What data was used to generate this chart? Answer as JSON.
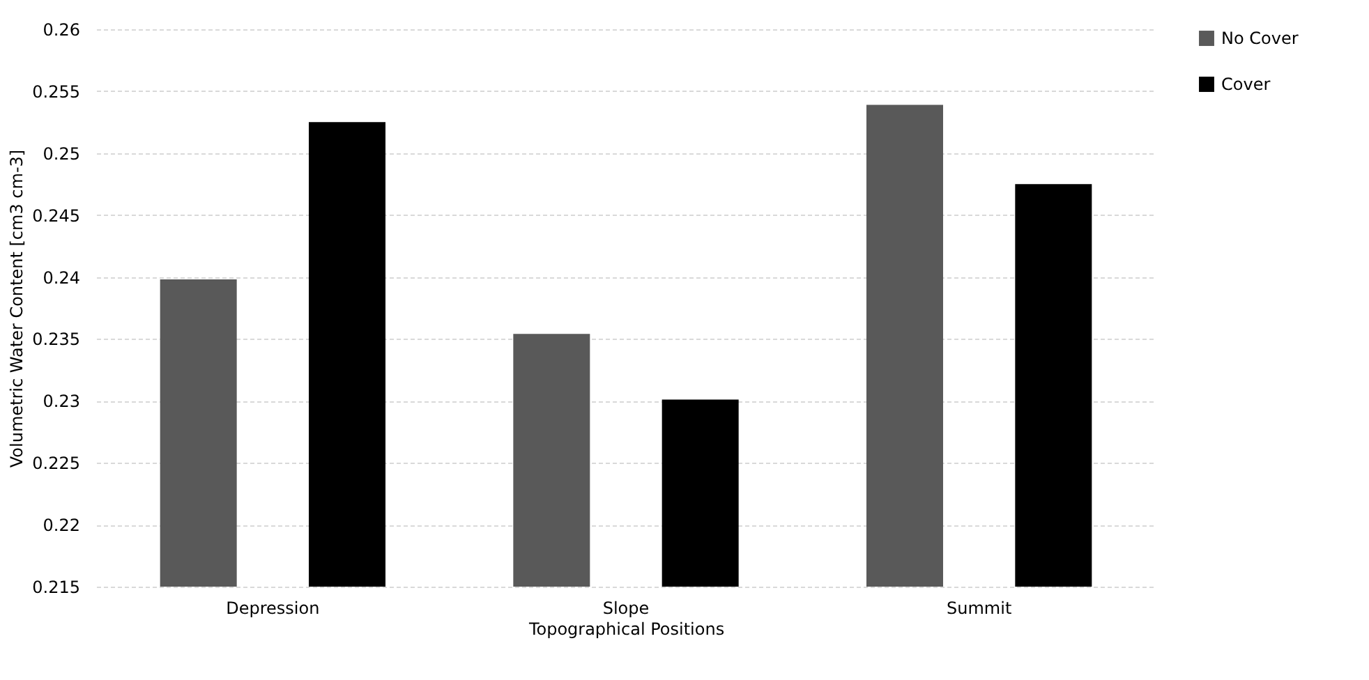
{
  "chart_data": {
    "type": "bar",
    "xlabel": "Topographical Positions",
    "ylabel": "Volumetric Water Content [cm3  cm-3]",
    "categories": [
      "Depression",
      "Slope",
      "Summit"
    ],
    "series": [
      {
        "name": "No Cover",
        "color": "#595959",
        "values": [
          0.2398,
          0.2354,
          0.2539
        ]
      },
      {
        "name": "Cover",
        "color": "#000000",
        "values": [
          0.2525,
          0.2301,
          0.2475
        ]
      }
    ],
    "ylim": [
      0.215,
      0.26
    ],
    "yticks": [
      0.215,
      0.22,
      0.225,
      0.23,
      0.235,
      0.24,
      0.245,
      0.25,
      0.255,
      0.26
    ],
    "grid": "y",
    "legend": "right"
  }
}
